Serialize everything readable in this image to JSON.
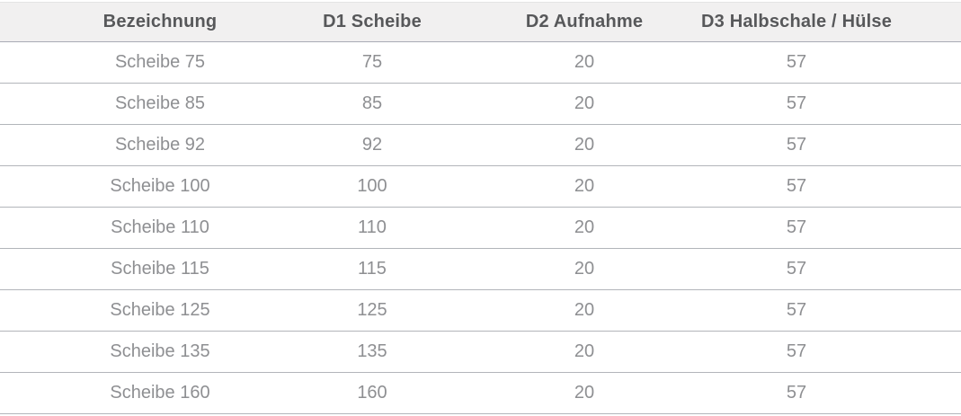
{
  "table": {
    "columns": [
      "Bezeichnung",
      "D1 Scheibe",
      "D2 Aufnahme",
      "D3 Halbschale / Hülse"
    ],
    "rows": [
      [
        "Scheibe 75",
        "75",
        "20",
        "57"
      ],
      [
        "Scheibe 85",
        "85",
        "20",
        "57"
      ],
      [
        "Scheibe 92",
        "92",
        "20",
        "57"
      ],
      [
        "Scheibe 100",
        "100",
        "20",
        "57"
      ],
      [
        "Scheibe 110",
        "110",
        "20",
        "57"
      ],
      [
        "Scheibe 115",
        "115",
        "20",
        "57"
      ],
      [
        "Scheibe 125",
        "125",
        "20",
        "57"
      ],
      [
        "Scheibe 135",
        "135",
        "20",
        "57"
      ],
      [
        "Scheibe 160",
        "160",
        "20",
        "57"
      ]
    ]
  },
  "colors": {
    "header_bg": "#f1f0f0",
    "header_text": "#57585a",
    "body_text": "#8e8f92",
    "divider": "#b2b5ba",
    "header_border": "#a9abb5",
    "top_hairline": "#e4e4e4",
    "page_bg": "#ffffff"
  }
}
